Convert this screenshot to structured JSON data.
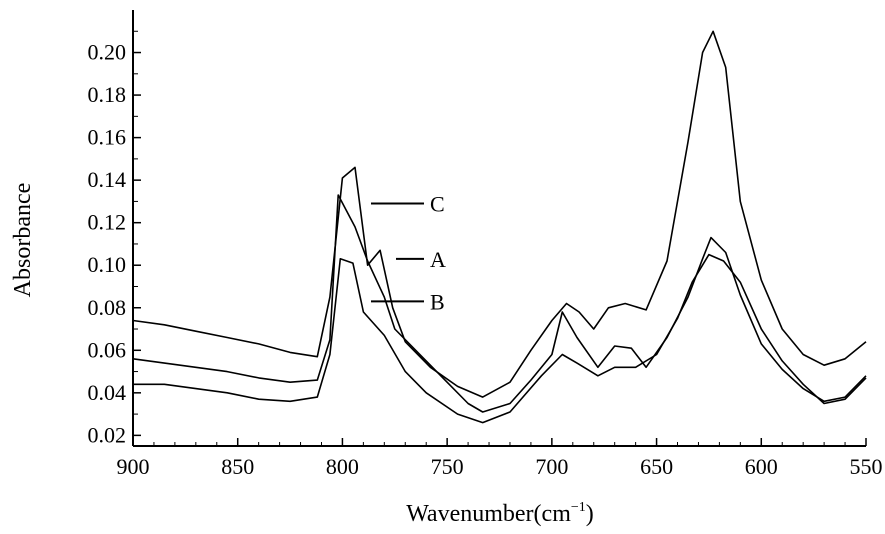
{
  "chart_data": {
    "type": "line",
    "title": "",
    "xlabel": "Wavenumber(cm",
    "xlabel_sup": "−1",
    "xlabel_suffix": ")",
    "ylabel": "Absorbance",
    "xlim": [
      900,
      550
    ],
    "x_reversed": true,
    "ylim": [
      0.015,
      0.22
    ],
    "xticks": [
      900,
      850,
      800,
      750,
      700,
      650,
      600,
      550
    ],
    "yticks": [
      "0.02",
      "0.04",
      "0.06",
      "0.08",
      "0.10",
      "0.12",
      "0.14",
      "0.16",
      "0.18",
      "0.20"
    ],
    "grid": false,
    "line_color": "#000000",
    "series": [
      {
        "name": "C",
        "x": [
          900,
          885,
          870,
          855,
          840,
          825,
          812,
          806,
          800,
          794,
          788,
          782,
          776,
          770,
          758,
          745,
          733,
          720,
          710,
          700,
          693,
          687,
          680,
          673,
          665,
          655,
          645,
          635,
          628,
          623,
          617,
          610,
          600,
          590,
          580,
          570,
          560,
          550
        ],
        "y": [
          0.074,
          0.072,
          0.069,
          0.066,
          0.063,
          0.059,
          0.057,
          0.085,
          0.141,
          0.146,
          0.1,
          0.107,
          0.08,
          0.064,
          0.052,
          0.043,
          0.038,
          0.045,
          0.06,
          0.074,
          0.082,
          0.078,
          0.07,
          0.08,
          0.082,
          0.079,
          0.102,
          0.158,
          0.2,
          0.21,
          0.193,
          0.13,
          0.093,
          0.07,
          0.058,
          0.053,
          0.056,
          0.064
        ]
      },
      {
        "name": "A",
        "x": [
          900,
          885,
          870,
          855,
          840,
          825,
          812,
          806,
          802,
          794,
          788,
          780,
          775,
          765,
          750,
          740,
          733,
          720,
          710,
          700,
          695,
          688,
          678,
          670,
          662,
          655,
          645,
          635,
          628,
          624,
          617,
          610,
          600,
          590,
          580,
          570,
          560,
          550
        ],
        "y": [
          0.056,
          0.054,
          0.052,
          0.05,
          0.047,
          0.045,
          0.046,
          0.065,
          0.133,
          0.118,
          0.102,
          0.085,
          0.07,
          0.06,
          0.045,
          0.035,
          0.031,
          0.035,
          0.046,
          0.058,
          0.078,
          0.066,
          0.052,
          0.062,
          0.061,
          0.052,
          0.066,
          0.085,
          0.103,
          0.113,
          0.106,
          0.086,
          0.063,
          0.051,
          0.042,
          0.036,
          0.038,
          0.048
        ]
      },
      {
        "name": "B",
        "x": [
          900,
          885,
          870,
          855,
          840,
          825,
          812,
          806,
          801,
          795,
          790,
          780,
          770,
          760,
          745,
          733,
          720,
          705,
          695,
          688,
          678,
          670,
          660,
          650,
          640,
          633,
          625,
          618,
          610,
          600,
          590,
          580,
          570,
          560,
          550
        ],
        "y": [
          0.044,
          0.044,
          0.042,
          0.04,
          0.037,
          0.036,
          0.038,
          0.058,
          0.103,
          0.101,
          0.078,
          0.067,
          0.05,
          0.04,
          0.03,
          0.026,
          0.031,
          0.048,
          0.058,
          0.054,
          0.048,
          0.052,
          0.052,
          0.058,
          0.075,
          0.092,
          0.105,
          0.102,
          0.092,
          0.07,
          0.055,
          0.044,
          0.035,
          0.037,
          0.047
        ]
      }
    ],
    "legend": [
      {
        "label": "C",
        "y": 0.129
      },
      {
        "label": "A",
        "y": 0.103
      },
      {
        "label": "B",
        "y": 0.083
      }
    ]
  }
}
